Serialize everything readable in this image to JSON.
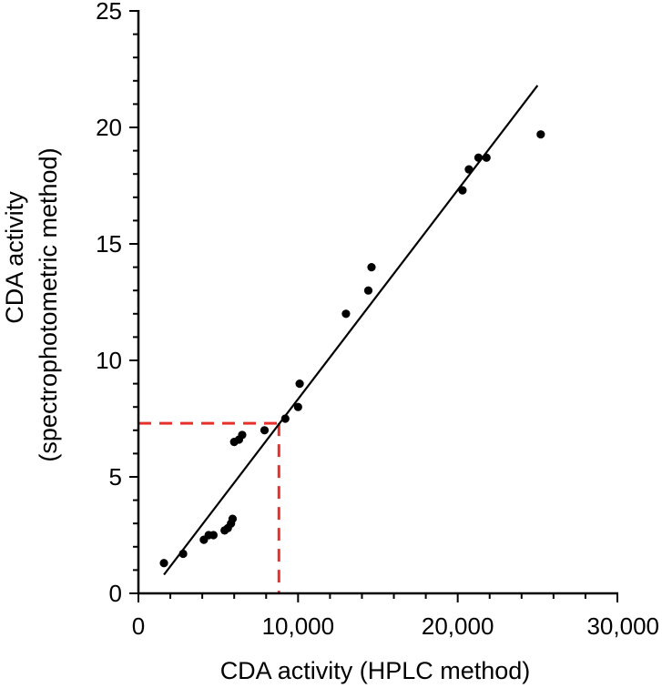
{
  "chart_data": {
    "type": "scatter",
    "xlabel": "CDA activity (HPLC method)",
    "ylabel_lines": [
      "CDA activity",
      "(spectrophotometric method)"
    ],
    "xlim": [
      0,
      30000
    ],
    "ylim": [
      0,
      25
    ],
    "x_ticks": [
      0,
      10000,
      20000,
      30000
    ],
    "x_tick_labels": [
      "0",
      "10,000",
      "20,000",
      "30,000"
    ],
    "y_ticks": [
      0,
      5,
      10,
      15,
      20,
      25
    ],
    "y_tick_labels": [
      "0",
      "5",
      "10",
      "15",
      "20",
      "25"
    ],
    "grid": false,
    "points": [
      {
        "x": 1600,
        "y": 1.3
      },
      {
        "x": 2800,
        "y": 1.7
      },
      {
        "x": 4100,
        "y": 2.3
      },
      {
        "x": 4400,
        "y": 2.5
      },
      {
        "x": 4700,
        "y": 2.5
      },
      {
        "x": 5400,
        "y": 2.7
      },
      {
        "x": 5600,
        "y": 2.8
      },
      {
        "x": 5800,
        "y": 3.0
      },
      {
        "x": 5900,
        "y": 3.2
      },
      {
        "x": 6000,
        "y": 6.5
      },
      {
        "x": 6300,
        "y": 6.6
      },
      {
        "x": 6500,
        "y": 6.8
      },
      {
        "x": 7900,
        "y": 7.0
      },
      {
        "x": 9200,
        "y": 7.5
      },
      {
        "x": 10000,
        "y": 8.0
      },
      {
        "x": 10100,
        "y": 9.0
      },
      {
        "x": 13000,
        "y": 12.0
      },
      {
        "x": 14400,
        "y": 13.0
      },
      {
        "x": 14600,
        "y": 14.0
      },
      {
        "x": 20300,
        "y": 17.3
      },
      {
        "x": 20700,
        "y": 18.2
      },
      {
        "x": 21300,
        "y": 18.7
      },
      {
        "x": 21800,
        "y": 18.7
      },
      {
        "x": 25200,
        "y": 19.7
      }
    ],
    "fit_line": {
      "x": [
        1600,
        25000
      ],
      "y": [
        0.8,
        21.8
      ],
      "color": "#000000"
    },
    "reference_lines": {
      "x": 8800,
      "y": 7.3,
      "color": "#e8302a",
      "style": "dashed"
    }
  }
}
